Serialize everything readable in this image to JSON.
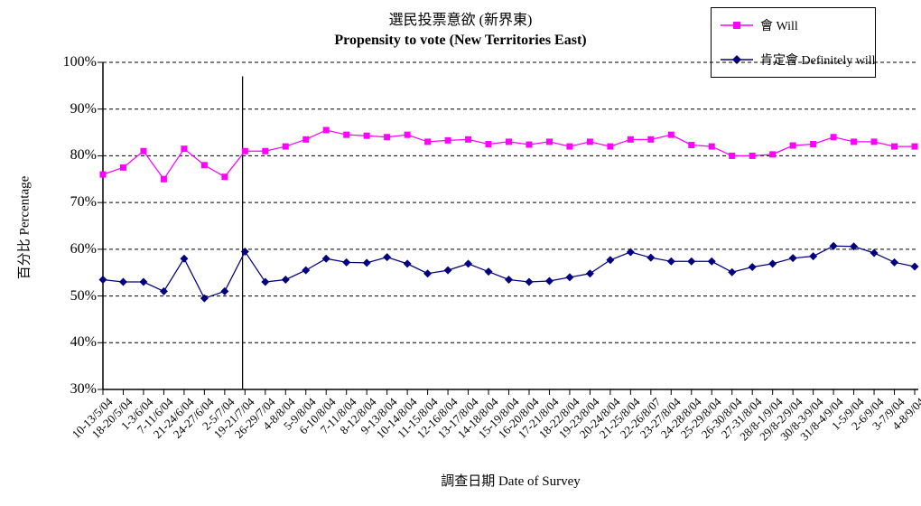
{
  "chart": {
    "title_zh": "選民投票意欲 (新界東)",
    "title_en": "Propensity to vote (New Territories East)",
    "x_axis_title": "調查日期 Date of Survey",
    "y_axis_title": "百分比 Percentage"
  },
  "chart_data": {
    "type": "line",
    "title": "選民投票意欲 (新界東) / Propensity to vote (New Territories East)",
    "xlabel": "調查日期 Date of Survey",
    "ylabel": "百分比 Percentage",
    "ylim": [
      30,
      100
    ],
    "ytick_step": 10,
    "ytick_labels": [
      "30%",
      "40%",
      "50%",
      "60%",
      "70%",
      "80%",
      "90%",
      "100%"
    ],
    "grid": "horizontal-dashed",
    "legend_position": "top-right",
    "background": "#ffffff",
    "axis_color": "#000000",
    "categories": [
      "10-13/5/04",
      "18-20/5/04",
      "1-3/6/04",
      "7-11/6/04",
      "21-24/6/04",
      "24-27/6/04",
      "2-5/7/04",
      "19-21/7/04",
      "26-29/7/04",
      "4-8/8/04",
      "5-9/8/04",
      "6-10/8/04",
      "7-11/8/04",
      "8-12/8/04",
      "9-13/8/04",
      "10-14/8/04",
      "11-15/8/04",
      "12-16/8/04",
      "13-17/8/04",
      "14-18/8/04",
      "15-19/8/04",
      "16-20/8/04",
      "17-21/8/04",
      "18-22/8/04",
      "19-23/8/04",
      "20-24/8/04",
      "21-25/8/04",
      "22-26/8/07",
      "23-27/8/04",
      "24-28/8/04",
      "25-29/8/04",
      "26-30/8/04",
      "27-31/8/04",
      "28/8-1/9/04",
      "29/8-2/9/04",
      "30/8-3/9/04",
      "31/8-4/9/04",
      "1-5/9/04",
      "2-6/9/04",
      "3-7/9/04",
      "4-8/9/04"
    ],
    "series": [
      {
        "name": "會 Will",
        "color": "#FF00FF",
        "marker": "square",
        "values": [
          76.0,
          77.5,
          81.0,
          75.0,
          81.5,
          78.0,
          75.5,
          81.0,
          81.0,
          82.0,
          83.5,
          85.5,
          84.5,
          84.3,
          84.0,
          84.5,
          83.0,
          83.3,
          83.5,
          82.5,
          83.0,
          82.4,
          83.0,
          82.0,
          83.0,
          82.0,
          83.5,
          83.5,
          84.5,
          82.3,
          82.0,
          80.0,
          80.0,
          80.3,
          82.2,
          82.5,
          84.0,
          83.0,
          83.0,
          82.0,
          82.0
        ]
      },
      {
        "name": "肯定會 Definitely will",
        "color": "#000080",
        "marker": "diamond",
        "values": [
          53.5,
          53.0,
          53.0,
          51.0,
          58.0,
          49.5,
          51.0,
          59.5,
          53.0,
          53.5,
          55.5,
          58.0,
          57.2,
          57.1,
          58.3,
          56.9,
          54.8,
          55.5,
          56.9,
          55.2,
          53.5,
          53.0,
          53.2,
          54.0,
          54.8,
          57.7,
          59.4,
          58.2,
          57.4,
          57.4,
          57.4,
          55.1,
          56.2,
          56.9,
          58.1,
          58.5,
          60.7,
          60.6,
          59.2,
          57.2,
          56.3
        ]
      }
    ],
    "vertical_marker": {
      "x_index": 6.88,
      "y_top_value": 97,
      "color": "#000000"
    }
  }
}
